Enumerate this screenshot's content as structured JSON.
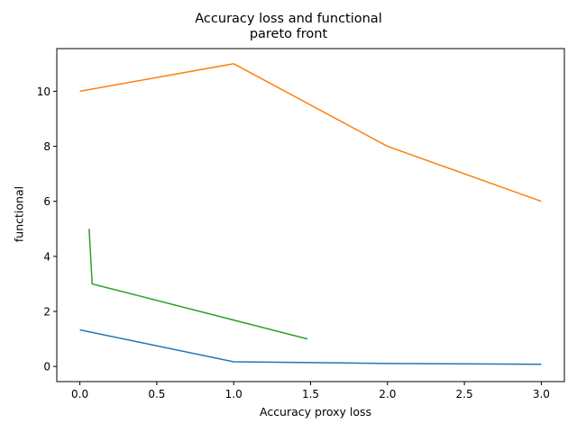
{
  "chart_data": {
    "type": "line",
    "title_lines": [
      "Accuracy loss and functional",
      "pareto front"
    ],
    "xlabel": "Accuracy proxy loss",
    "ylabel": "functional",
    "xlim": [
      -0.15,
      3.15
    ],
    "ylim": [
      -0.55,
      11.55
    ],
    "x_ticks": [
      0.0,
      0.5,
      1.0,
      1.5,
      2.0,
      2.5,
      3.0
    ],
    "x_tick_labels": [
      "0.0",
      "0.5",
      "1.0",
      "1.5",
      "2.0",
      "2.5",
      "3.0"
    ],
    "y_ticks": [
      0,
      2,
      4,
      6,
      8,
      10
    ],
    "y_tick_labels": [
      "0",
      "2",
      "4",
      "6",
      "8",
      "10"
    ],
    "grid": false,
    "series": [
      {
        "color": "#1f77b4",
        "x": [
          0.0,
          1.0,
          2.0,
          3.0
        ],
        "y": [
          1.33,
          0.17,
          0.11,
          0.08
        ]
      },
      {
        "color": "#ff7f0e",
        "x": [
          0.0,
          1.0,
          2.0,
          3.0
        ],
        "y": [
          10.0,
          11.0,
          8.0,
          6.0
        ]
      },
      {
        "color": "#2ca02c",
        "x": [
          0.06,
          0.08,
          1.48
        ],
        "y": [
          5.0,
          3.0,
          1.0
        ]
      }
    ]
  }
}
